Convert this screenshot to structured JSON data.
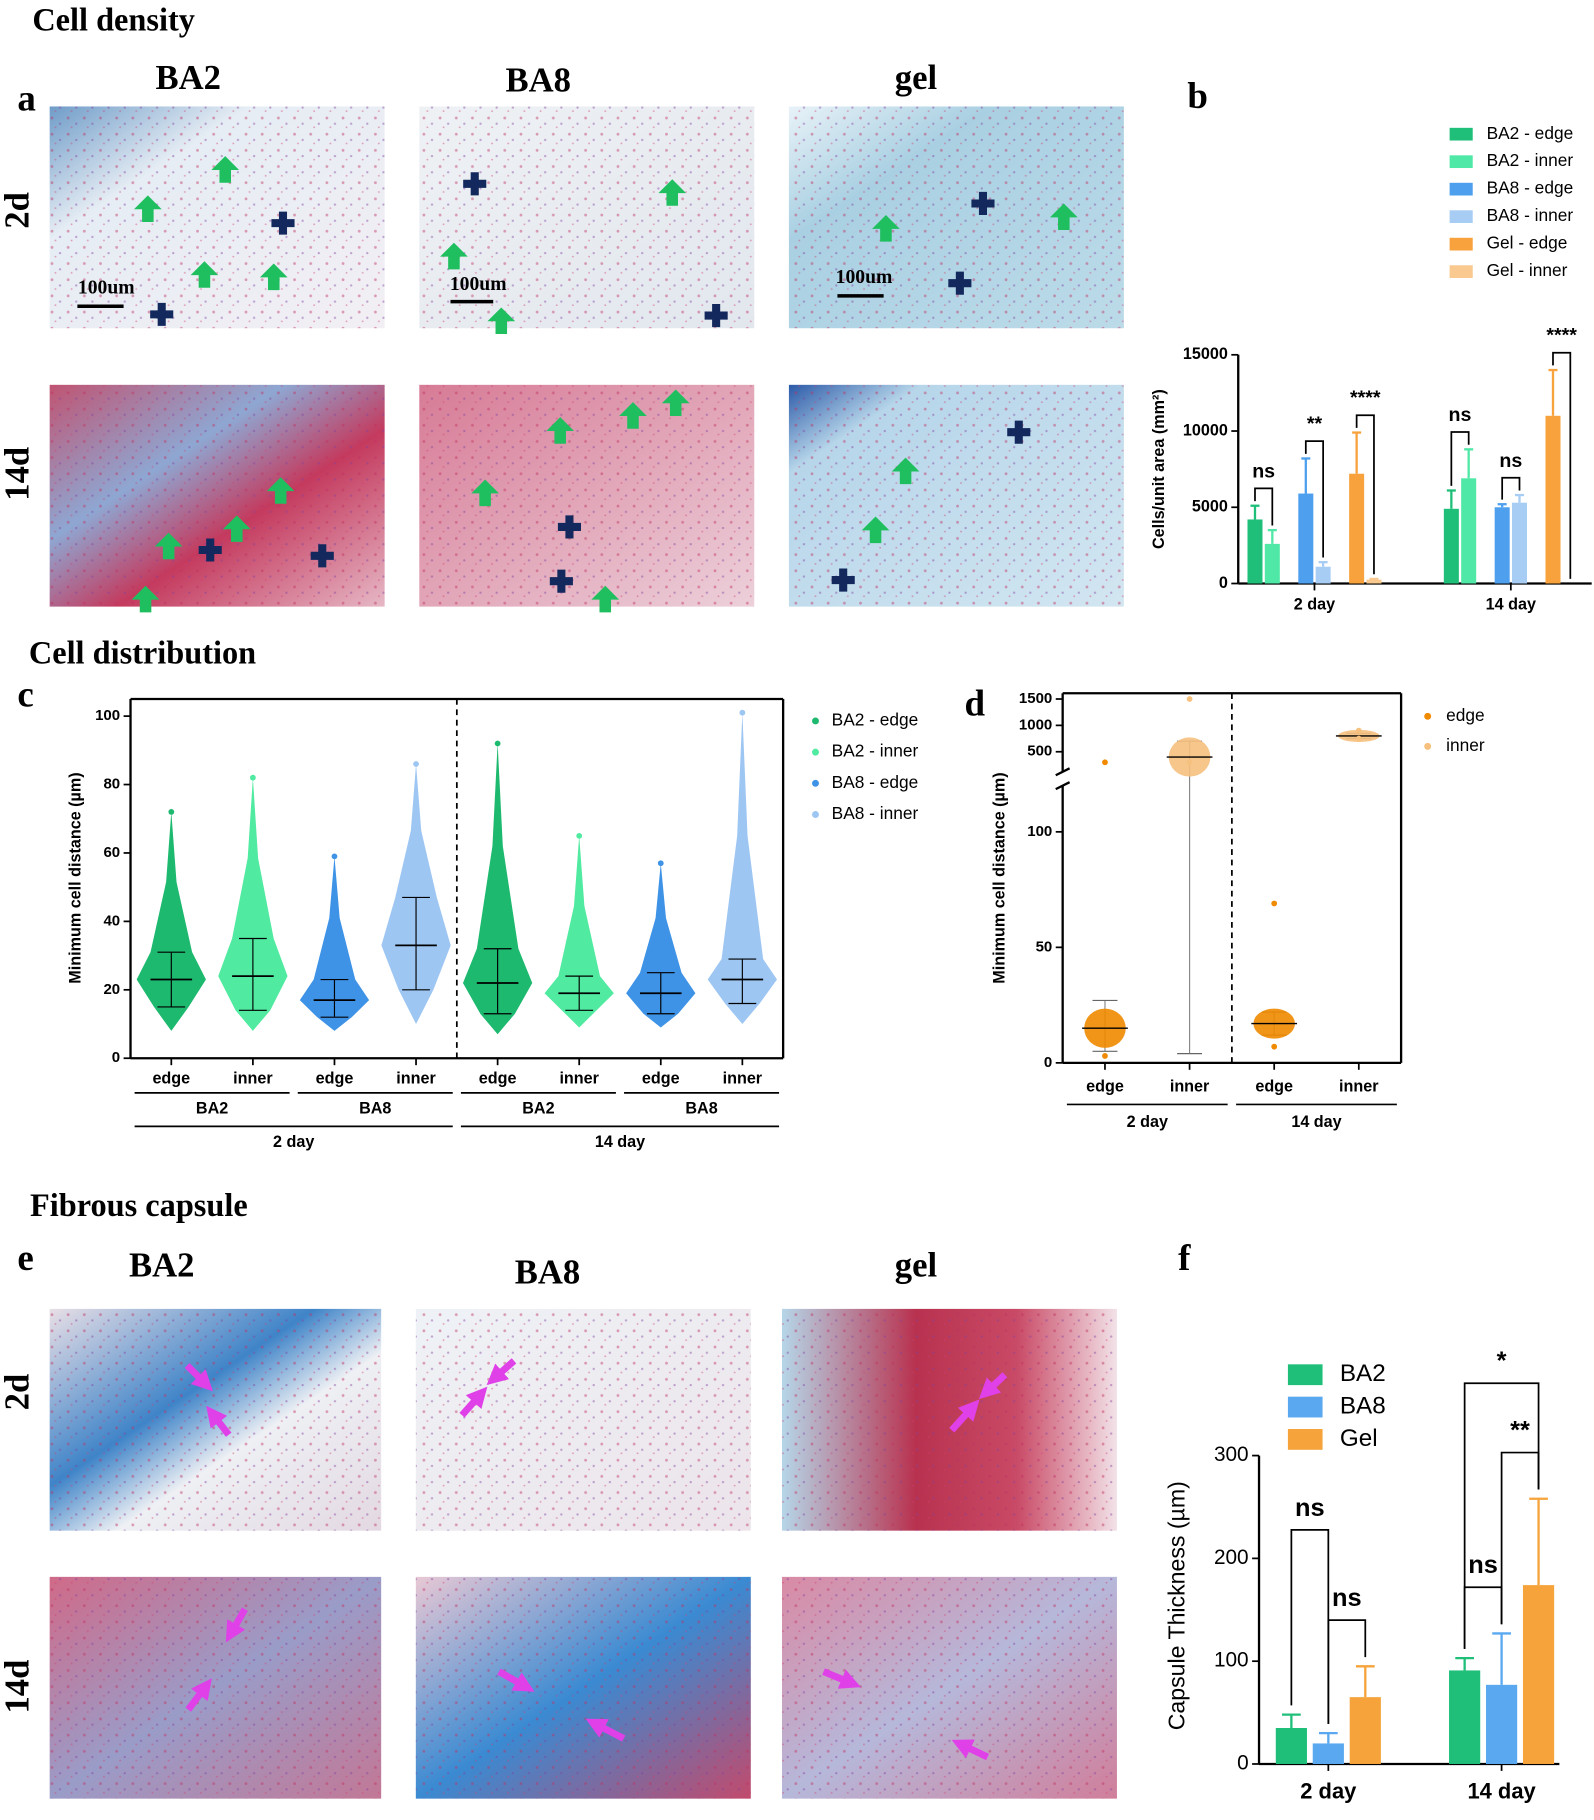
{
  "figure": {
    "sections": [
      "Cell density",
      "Cell distribution",
      "Fibrous capsule"
    ],
    "panel_letters": [
      "a",
      "b",
      "c",
      "d",
      "e",
      "f"
    ],
    "a_columns": [
      "BA2",
      "BA8",
      "gel"
    ],
    "a_rows": [
      "2d",
      "14d"
    ],
    "a_scale_bars": [
      "100um",
      "100um",
      "100um"
    ],
    "e_columns": [
      "BA2",
      "BA8",
      "gel"
    ],
    "e_rows": [
      "2d",
      "14d"
    ]
  },
  "chart_data": [
    {
      "type": "bar",
      "ylabel": "Cells/unit area (mm²)",
      "categories": [
        "2 day",
        "14 day"
      ],
      "ylim": [
        0,
        15000
      ],
      "yticks": [
        0,
        5000,
        10000,
        15000
      ],
      "series": [
        {
          "name": "BA2 - edge",
          "color": "#1fbf7a",
          "values": [
            4200,
            4900
          ],
          "errors": [
            900,
            1200
          ]
        },
        {
          "name": "BA2 - inner",
          "color": "#4fe8a6",
          "values": [
            2600,
            6900
          ],
          "errors": [
            900,
            1900
          ]
        },
        {
          "name": "BA8 - edge",
          "color": "#4ea0ee",
          "values": [
            5900,
            5000
          ],
          "errors": [
            2300,
            200
          ]
        },
        {
          "name": "BA8 - inner",
          "color": "#a8cdf5",
          "values": [
            1100,
            5300
          ],
          "errors": [
            300,
            500
          ]
        },
        {
          "name": "Gel - edge",
          "color": "#f7a23c",
          "values": [
            7200,
            11000
          ],
          "errors": [
            2700,
            3000
          ]
        },
        {
          "name": "Gel - inner",
          "color": "#f9c98f",
          "values": [
            250,
            null
          ],
          "errors": [
            50,
            null
          ]
        }
      ],
      "annotations": [
        "ns",
        "**",
        "****",
        "ns",
        "ns",
        "****"
      ]
    },
    {
      "type": "violin",
      "ylabel": "Minimum cell distance (µm)",
      "categories": [
        "edge",
        "inner",
        "edge",
        "inner",
        "edge",
        "inner",
        "edge",
        "inner"
      ],
      "groups": [
        "BA2",
        "BA8",
        "BA2",
        "BA8"
      ],
      "days": [
        "2 day",
        "14 day"
      ],
      "ylim": [
        0,
        105
      ],
      "yticks": [
        0,
        20,
        40,
        60,
        80,
        100
      ],
      "series": [
        {
          "name": "BA2 - edge",
          "color": "#1db96f",
          "median": [
            23,
            22
          ],
          "q1": [
            15,
            13
          ],
          "q3": [
            31,
            32
          ],
          "min": [
            8,
            7
          ],
          "max": [
            72,
            92
          ]
        },
        {
          "name": "BA2 - inner",
          "color": "#50eaa0",
          "median": [
            24,
            19
          ],
          "q1": [
            14,
            14
          ],
          "q3": [
            35,
            24
          ],
          "min": [
            8,
            9
          ],
          "max": [
            82,
            65
          ]
        },
        {
          "name": "BA8 - edge",
          "color": "#3f93e6",
          "median": [
            17,
            19
          ],
          "q1": [
            12,
            13
          ],
          "q3": [
            23,
            25
          ],
          "min": [
            8,
            9
          ],
          "max": [
            59,
            57
          ]
        },
        {
          "name": "BA8 - inner",
          "color": "#9ec6f3",
          "median": [
            33,
            23
          ],
          "q1": [
            20,
            16
          ],
          "q3": [
            47,
            29
          ],
          "min": [
            10,
            10
          ],
          "max": [
            86,
            101
          ]
        }
      ]
    },
    {
      "type": "violin",
      "ylabel": "Minimum cell distance (µm)",
      "categories": [
        "edge",
        "inner",
        "edge",
        "inner"
      ],
      "days": [
        "2 day",
        "14 day"
      ],
      "ylim": [
        0,
        120
      ],
      "yticks": [
        0,
        50,
        100
      ],
      "ylim_upper": [
        120,
        1500
      ],
      "yticks_upper": [
        500,
        1000,
        1500
      ],
      "series": [
        {
          "name": "edge",
          "color": "#f08a00",
          "median": [
            15,
            17
          ],
          "q1": [
            5,
            12
          ],
          "q3": [
            27,
            22
          ],
          "min": [
            3,
            7
          ],
          "max": [
            300,
            69
          ]
        },
        {
          "name": "inner",
          "color": "#f6c07e",
          "median": [
            400,
            800
          ],
          "q1": [
            4,
            750
          ],
          "q3": [
            700,
            850
          ],
          "min": [
            300,
            750
          ],
          "max": [
            1500,
            900
          ]
        }
      ]
    },
    {
      "type": "bar",
      "ylabel": "Capsule Thickness (µm)",
      "categories": [
        "2 day",
        "14 day"
      ],
      "ylim": [
        0,
        300
      ],
      "yticks": [
        0,
        100,
        200,
        300
      ],
      "series": [
        {
          "name": "BA2",
          "color": "#1fbf7a",
          "values": [
            35,
            91
          ],
          "errors": [
            13,
            12
          ]
        },
        {
          "name": "BA8",
          "color": "#5aa9f0",
          "values": [
            20,
            77
          ],
          "errors": [
            10,
            50
          ]
        },
        {
          "name": "Gel",
          "color": "#f5a33a",
          "values": [
            65,
            174
          ],
          "errors": [
            30,
            84
          ]
        }
      ],
      "annotations": [
        "ns",
        "ns",
        "ns",
        "**",
        "*"
      ]
    }
  ]
}
